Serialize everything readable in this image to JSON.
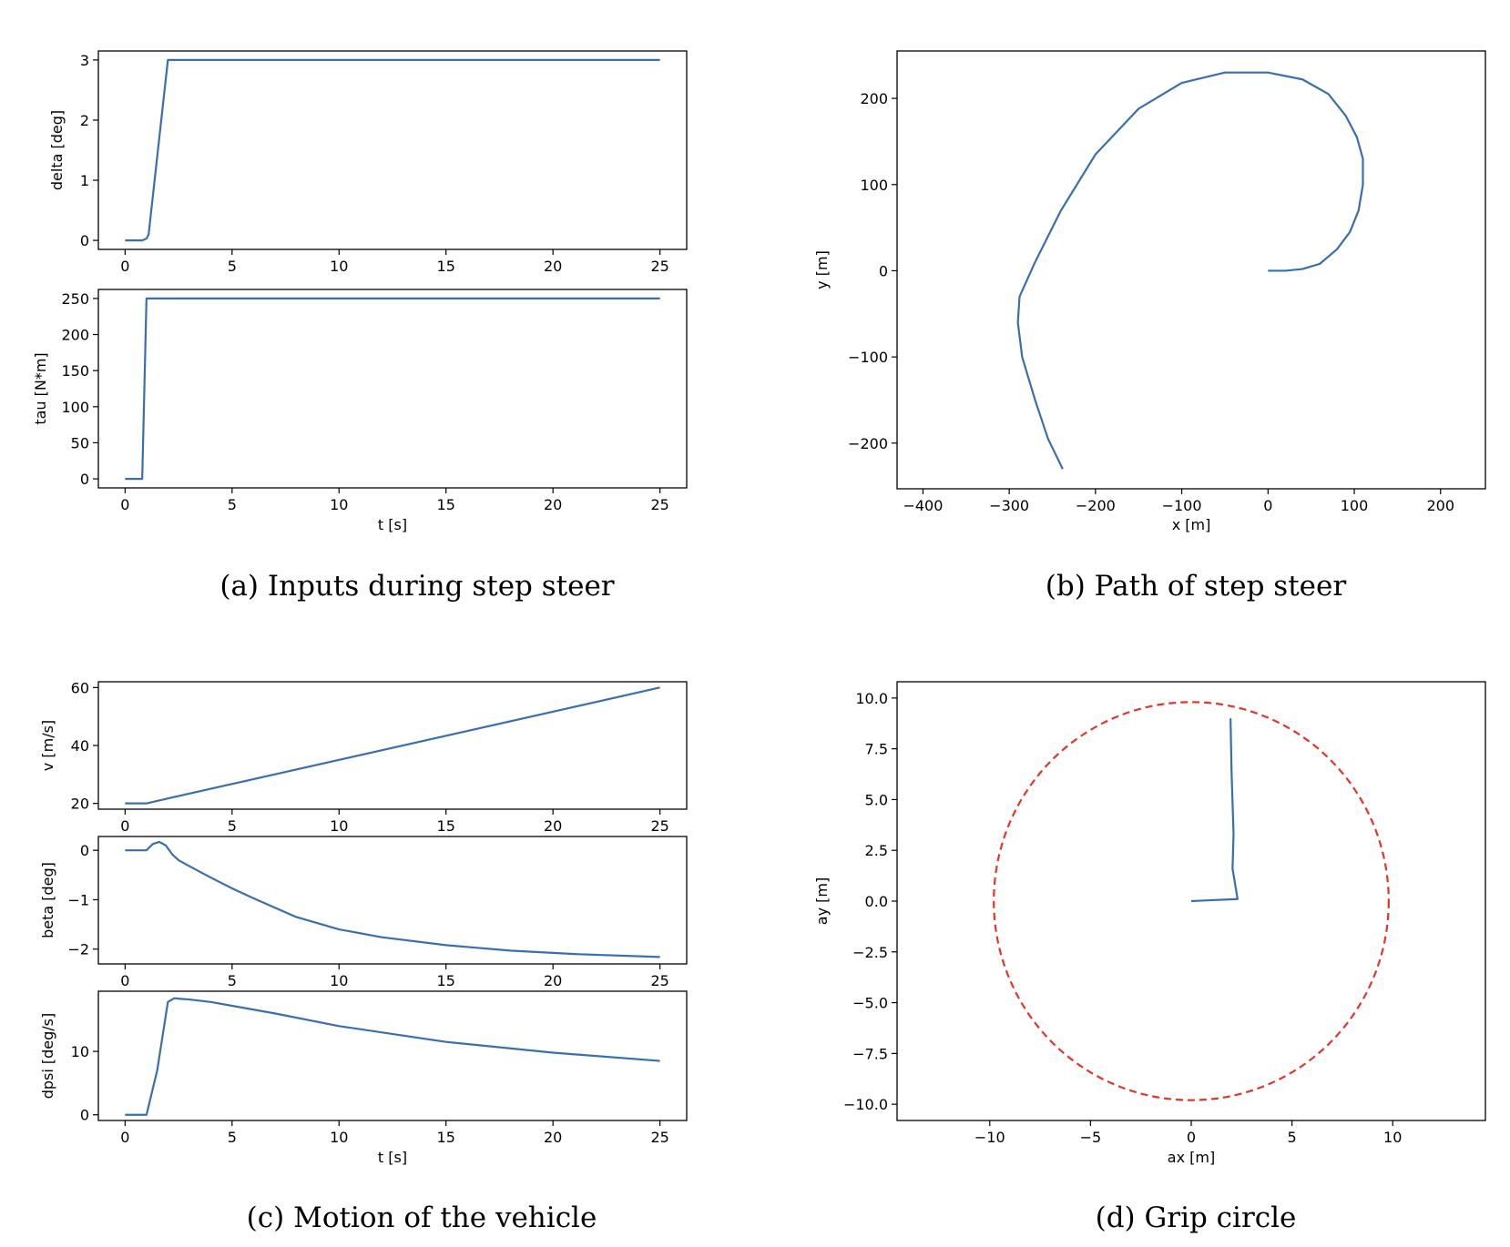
{
  "captions": {
    "a": "(a) Inputs during step steer",
    "b": "(b) Path of step steer",
    "c": "(c) Motion of the vehicle",
    "d": "(d) Grip circle"
  },
  "colors": {
    "series": "#3a6fab",
    "circle": "#e3352a"
  },
  "chart_data": [
    {
      "id": "delta",
      "type": "line",
      "xlabel": "",
      "ylabel": "delta [deg]",
      "xlim": [
        -1.25,
        26.25
      ],
      "ylim": [
        -0.15,
        3.15
      ],
      "xticks": [
        {
          "v": 0,
          "t": "0"
        },
        {
          "v": 5,
          "t": "5"
        },
        {
          "v": 10,
          "t": "10"
        },
        {
          "v": 15,
          "t": "15"
        },
        {
          "v": 20,
          "t": "20"
        },
        {
          "v": 25,
          "t": "25"
        }
      ],
      "yticks": [
        {
          "v": 0,
          "t": "0"
        },
        {
          "v": 1,
          "t": "1"
        },
        {
          "v": 2,
          "t": "2"
        },
        {
          "v": 3,
          "t": "3"
        }
      ],
      "series": [
        {
          "x": [
            0,
            0.8,
            1.0,
            1.1,
            2.0,
            25
          ],
          "y": [
            0,
            0,
            0.03,
            0.1,
            3,
            3
          ]
        }
      ]
    },
    {
      "id": "tau",
      "type": "line",
      "xlabel": "t [s]",
      "ylabel": "tau [N*m]",
      "xlim": [
        -1.25,
        26.25
      ],
      "ylim": [
        -12.5,
        262.5
      ],
      "xticks": [
        {
          "v": 0,
          "t": "0"
        },
        {
          "v": 5,
          "t": "5"
        },
        {
          "v": 10,
          "t": "10"
        },
        {
          "v": 15,
          "t": "15"
        },
        {
          "v": 20,
          "t": "20"
        },
        {
          "v": 25,
          "t": "25"
        }
      ],
      "yticks": [
        {
          "v": 0,
          "t": "0"
        },
        {
          "v": 50,
          "t": "50"
        },
        {
          "v": 100,
          "t": "100"
        },
        {
          "v": 150,
          "t": "150"
        },
        {
          "v": 200,
          "t": "200"
        },
        {
          "v": 250,
          "t": "250"
        }
      ],
      "series": [
        {
          "x": [
            0,
            0.8,
            1.0,
            25
          ],
          "y": [
            0,
            0,
            250,
            250
          ]
        }
      ]
    },
    {
      "id": "path",
      "type": "line",
      "xlabel": "x [m]",
      "ylabel": "y [m]",
      "xlim": [
        -430,
        252
      ],
      "ylim": [
        -253,
        255
      ],
      "xticks": [
        {
          "v": -400,
          "t": "−400"
        },
        {
          "v": -300,
          "t": "−300"
        },
        {
          "v": -200,
          "t": "−200"
        },
        {
          "v": -100,
          "t": "−100"
        },
        {
          "v": 0,
          "t": "0"
        },
        {
          "v": 100,
          "t": "100"
        },
        {
          "v": 200,
          "t": "200"
        }
      ],
      "yticks": [
        {
          "v": -200,
          "t": "−200"
        },
        {
          "v": -100,
          "t": "−100"
        },
        {
          "v": 0,
          "t": "0"
        },
        {
          "v": 100,
          "t": "100"
        },
        {
          "v": 200,
          "t": "200"
        }
      ],
      "series": [
        {
          "x": [
            0,
            20,
            40,
            60,
            80,
            95,
            105,
            110,
            110,
            103,
            90,
            70,
            40,
            0,
            -50,
            -100,
            -150,
            -200,
            -240,
            -270,
            -288,
            -290,
            -285,
            -270,
            -255,
            -238
          ],
          "y": [
            0,
            0,
            2,
            8,
            25,
            45,
            70,
            100,
            130,
            155,
            180,
            205,
            222,
            230,
            230,
            218,
            188,
            135,
            70,
            10,
            -30,
            -60,
            -100,
            -150,
            -195,
            -230
          ]
        }
      ]
    },
    {
      "id": "v",
      "type": "line",
      "xlabel": "",
      "ylabel": "v [m/s]",
      "xlim": [
        -1.25,
        26.25
      ],
      "ylim": [
        18,
        62
      ],
      "xticks": [
        {
          "v": 0,
          "t": "0"
        },
        {
          "v": 5,
          "t": "5"
        },
        {
          "v": 10,
          "t": "10"
        },
        {
          "v": 15,
          "t": "15"
        },
        {
          "v": 20,
          "t": "20"
        },
        {
          "v": 25,
          "t": "25"
        }
      ],
      "yticks": [
        {
          "v": 20,
          "t": "20"
        },
        {
          "v": 40,
          "t": "40"
        },
        {
          "v": 60,
          "t": "60"
        }
      ],
      "series": [
        {
          "x": [
            0,
            1.0,
            2.0,
            25
          ],
          "y": [
            20,
            20,
            21.7,
            60
          ]
        }
      ]
    },
    {
      "id": "beta",
      "type": "line",
      "xlabel": "",
      "ylabel": "beta [deg]",
      "xlim": [
        -1.25,
        26.25
      ],
      "ylim": [
        -2.3,
        0.28
      ],
      "xticks": [
        {
          "v": 0,
          "t": "0"
        },
        {
          "v": 5,
          "t": "5"
        },
        {
          "v": 10,
          "t": "10"
        },
        {
          "v": 15,
          "t": "15"
        },
        {
          "v": 20,
          "t": "20"
        },
        {
          "v": 25,
          "t": "25"
        }
      ],
      "yticks": [
        {
          "v": -2,
          "t": "−2"
        },
        {
          "v": -1,
          "t": "−1"
        },
        {
          "v": 0,
          "t": "0"
        }
      ],
      "series": [
        {
          "x": [
            0,
            1.0,
            1.3,
            1.6,
            1.9,
            2.2,
            2.5,
            3,
            4,
            5,
            6,
            8,
            10,
            12,
            15,
            18,
            21,
            25
          ],
          "y": [
            0,
            0,
            0.13,
            0.17,
            0.1,
            -0.08,
            -0.2,
            -0.32,
            -0.55,
            -0.77,
            -0.97,
            -1.35,
            -1.6,
            -1.76,
            -1.92,
            -2.03,
            -2.1,
            -2.16
          ]
        }
      ]
    },
    {
      "id": "dpsi",
      "type": "line",
      "xlabel": "t [s]",
      "ylabel": "dpsi [deg/s]",
      "xlim": [
        -1.25,
        26.25
      ],
      "ylim": [
        -0.9,
        19.5
      ],
      "xticks": [
        {
          "v": 0,
          "t": "0"
        },
        {
          "v": 5,
          "t": "5"
        },
        {
          "v": 10,
          "t": "10"
        },
        {
          "v": 15,
          "t": "15"
        },
        {
          "v": 20,
          "t": "20"
        },
        {
          "v": 25,
          "t": "25"
        }
      ],
      "yticks": [
        {
          "v": 0,
          "t": "0"
        },
        {
          "v": 10,
          "t": "10"
        }
      ],
      "series": [
        {
          "x": [
            0,
            1.0,
            1.5,
            2.0,
            2.3,
            2.6,
            3,
            4,
            5,
            7,
            10,
            15,
            20,
            25
          ],
          "y": [
            0,
            0,
            7,
            17.8,
            18.4,
            18.3,
            18.2,
            17.8,
            17.2,
            16,
            14,
            11.5,
            9.8,
            8.5
          ]
        }
      ]
    },
    {
      "id": "grip",
      "type": "line",
      "xlabel": "ax [m]",
      "ylabel": "ay [m]",
      "xlim": [
        -14.6,
        14.6
      ],
      "ylim": [
        -10.8,
        10.8
      ],
      "xticks": [
        {
          "v": -10,
          "t": "−10"
        },
        {
          "v": -5,
          "t": "−5"
        },
        {
          "v": 0,
          "t": "0"
        },
        {
          "v": 5,
          "t": "5"
        },
        {
          "v": 10,
          "t": "10"
        }
      ],
      "yticks": [
        {
          "v": 10,
          "t": "10.0"
        },
        {
          "v": 7.5,
          "t": "7.5"
        },
        {
          "v": 5,
          "t": "5.0"
        },
        {
          "v": 2.5,
          "t": "2.5"
        },
        {
          "v": 0,
          "t": "0.0"
        },
        {
          "v": -2.5,
          "t": "−2.5"
        },
        {
          "v": -5,
          "t": "−5.0"
        },
        {
          "v": -7.5,
          "t": "−7.5"
        },
        {
          "v": -10,
          "t": "−10.0"
        }
      ],
      "series": [
        {
          "x": [
            0,
            0.4,
            2.3,
            2.05,
            2.1,
            2.0,
            1.95
          ],
          "y": [
            0,
            0.02,
            0.1,
            1.6,
            3.3,
            6.4,
            9.0
          ]
        }
      ],
      "circle": {
        "cx": 0,
        "cy": 0,
        "r": 9.8
      }
    }
  ]
}
